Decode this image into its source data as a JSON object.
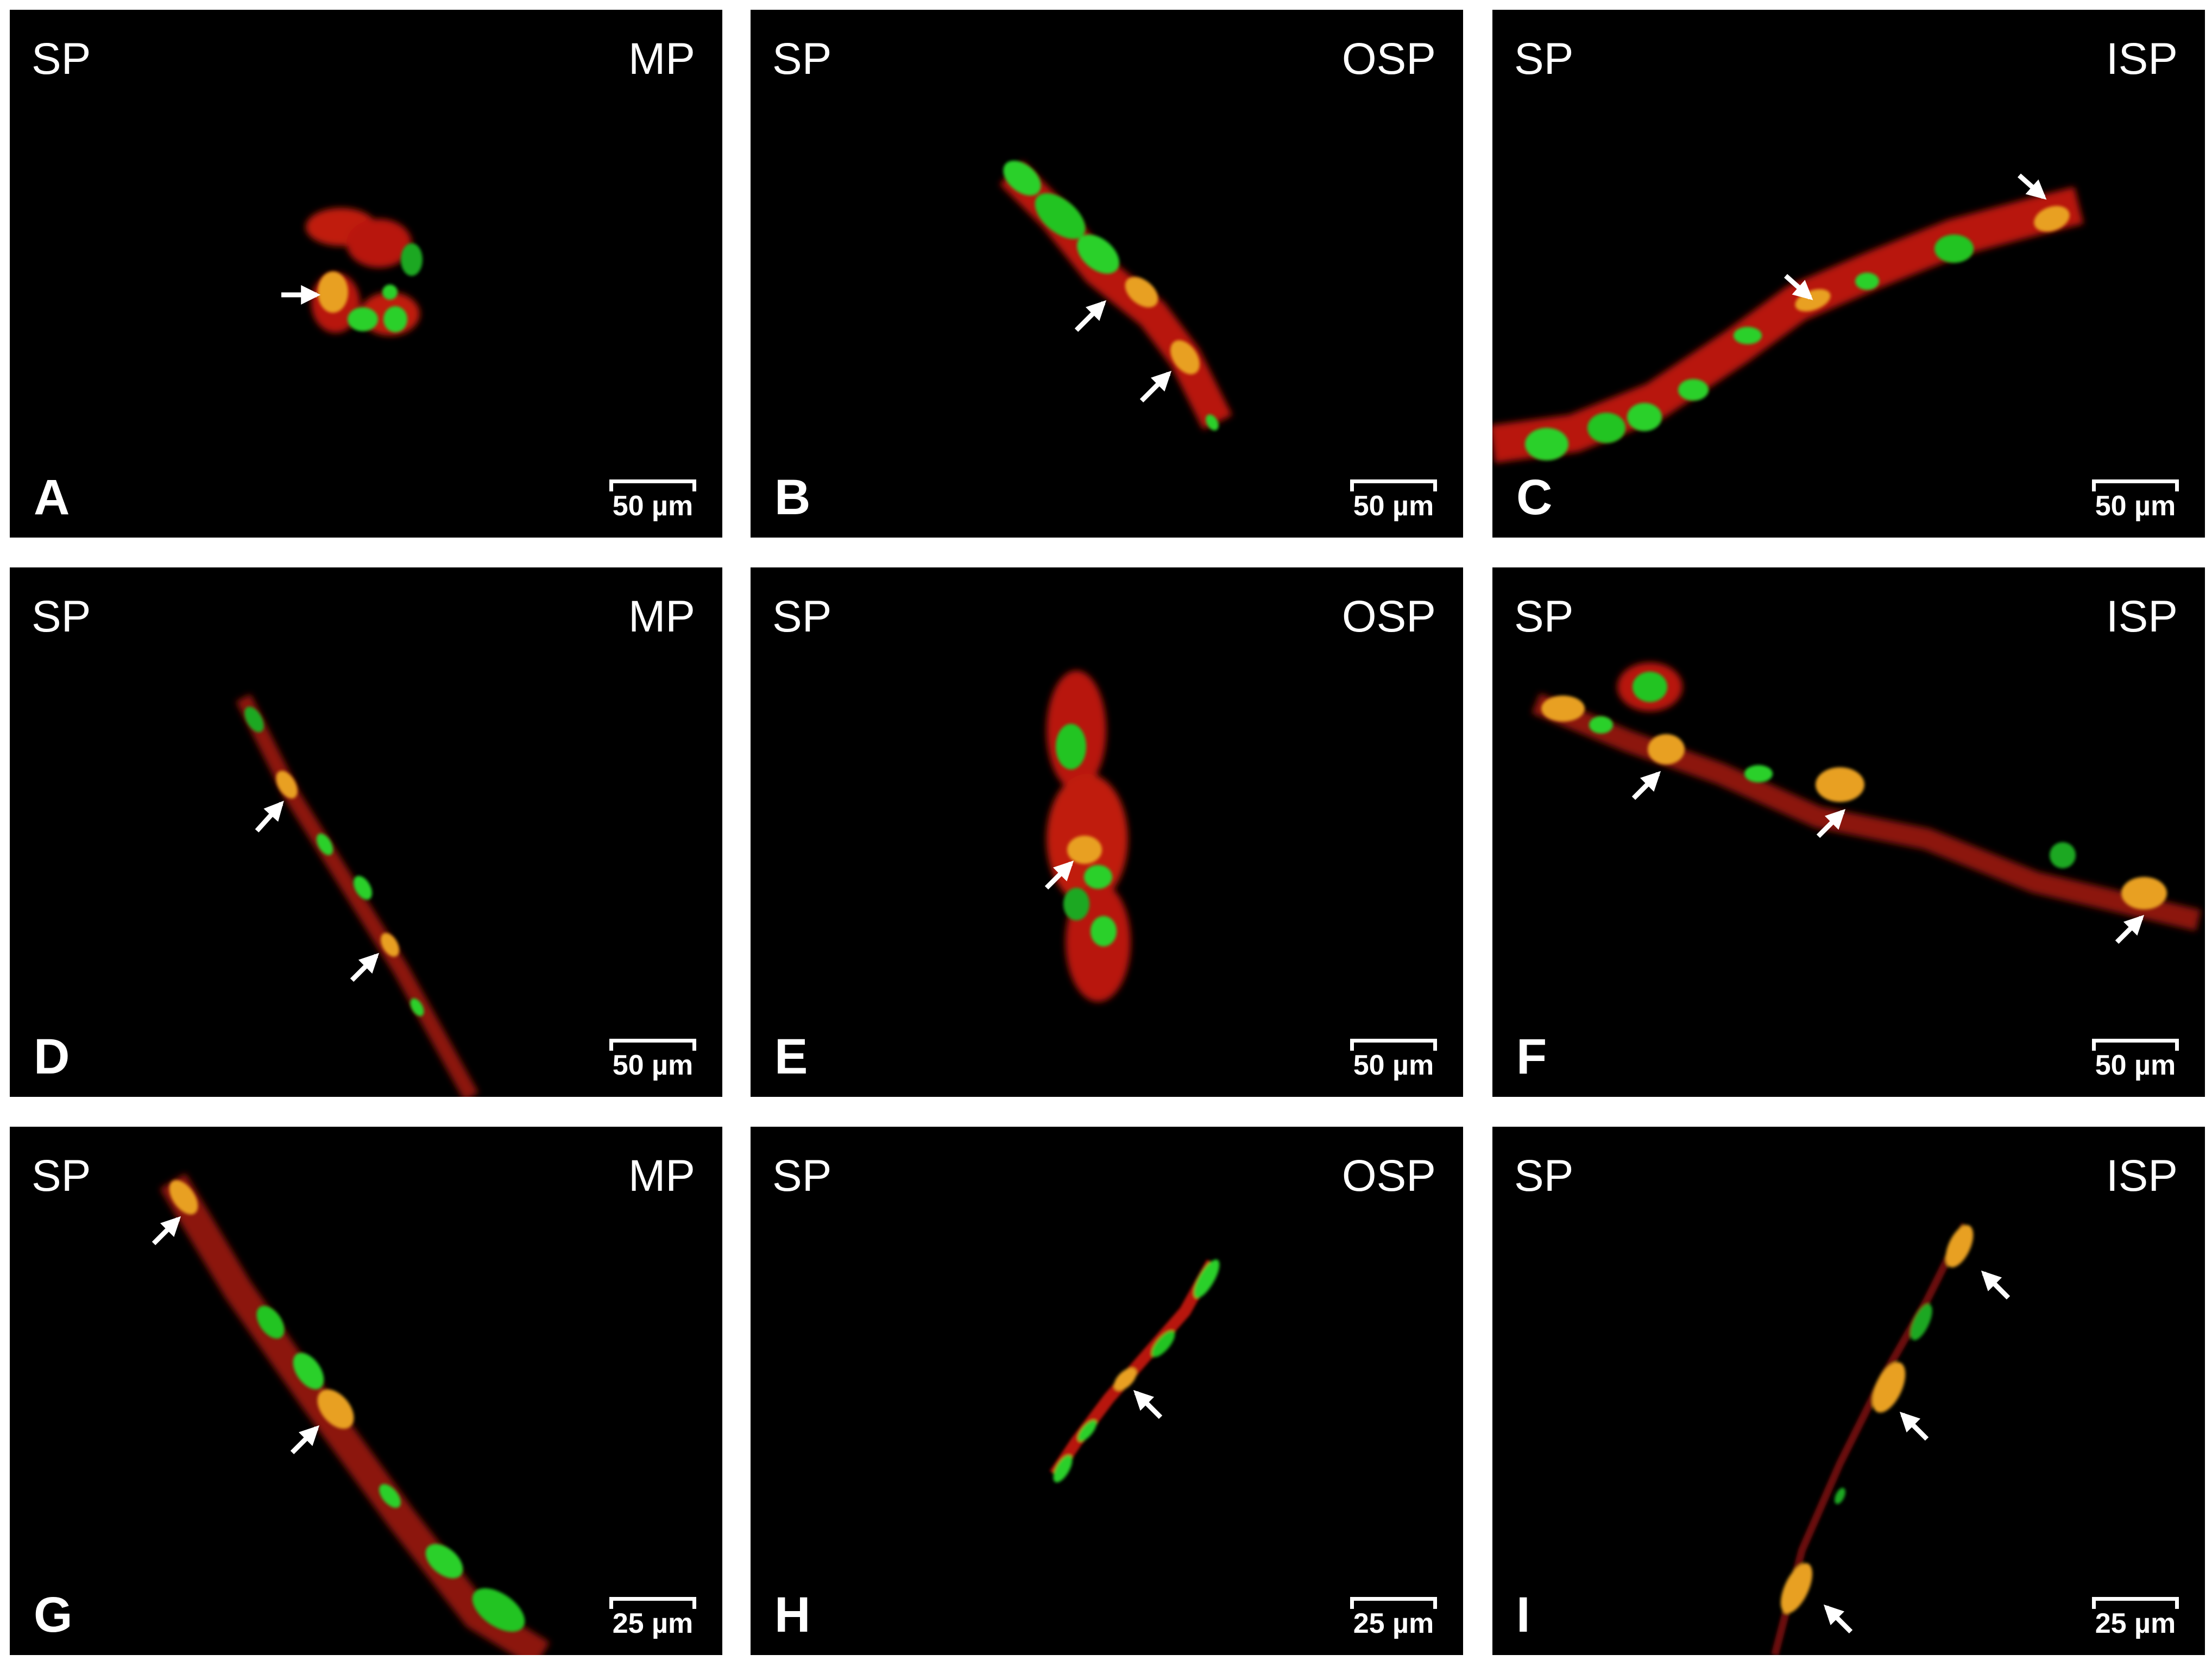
{
  "figure": {
    "panels": [
      {
        "letter": "A",
        "left_label": "SP",
        "right_label": "MP",
        "scale": "50 µm"
      },
      {
        "letter": "B",
        "left_label": "SP",
        "right_label": "OSP",
        "scale": "50 µm"
      },
      {
        "letter": "C",
        "left_label": "SP",
        "right_label": "ISP",
        "scale": "50 µm"
      },
      {
        "letter": "D",
        "left_label": "SP",
        "right_label": "MP",
        "scale": "50 µm"
      },
      {
        "letter": "E",
        "left_label": "SP",
        "right_label": "OSP",
        "scale": "50 µm"
      },
      {
        "letter": "F",
        "left_label": "SP",
        "right_label": "ISP",
        "scale": "50 µm"
      },
      {
        "letter": "G",
        "left_label": "SP",
        "right_label": "MP",
        "scale": "25 µm"
      },
      {
        "letter": "H",
        "left_label": "SP",
        "right_label": "OSP",
        "scale": "25 µm"
      },
      {
        "letter": "I",
        "left_label": "SP",
        "right_label": "ISP",
        "scale": "25 µm"
      }
    ]
  },
  "colors": {
    "background": "#000000",
    "green_stain": "#22d42a",
    "red_stain": "#c81a10",
    "merged": "#e8a020",
    "arrow": "#ffffff"
  }
}
